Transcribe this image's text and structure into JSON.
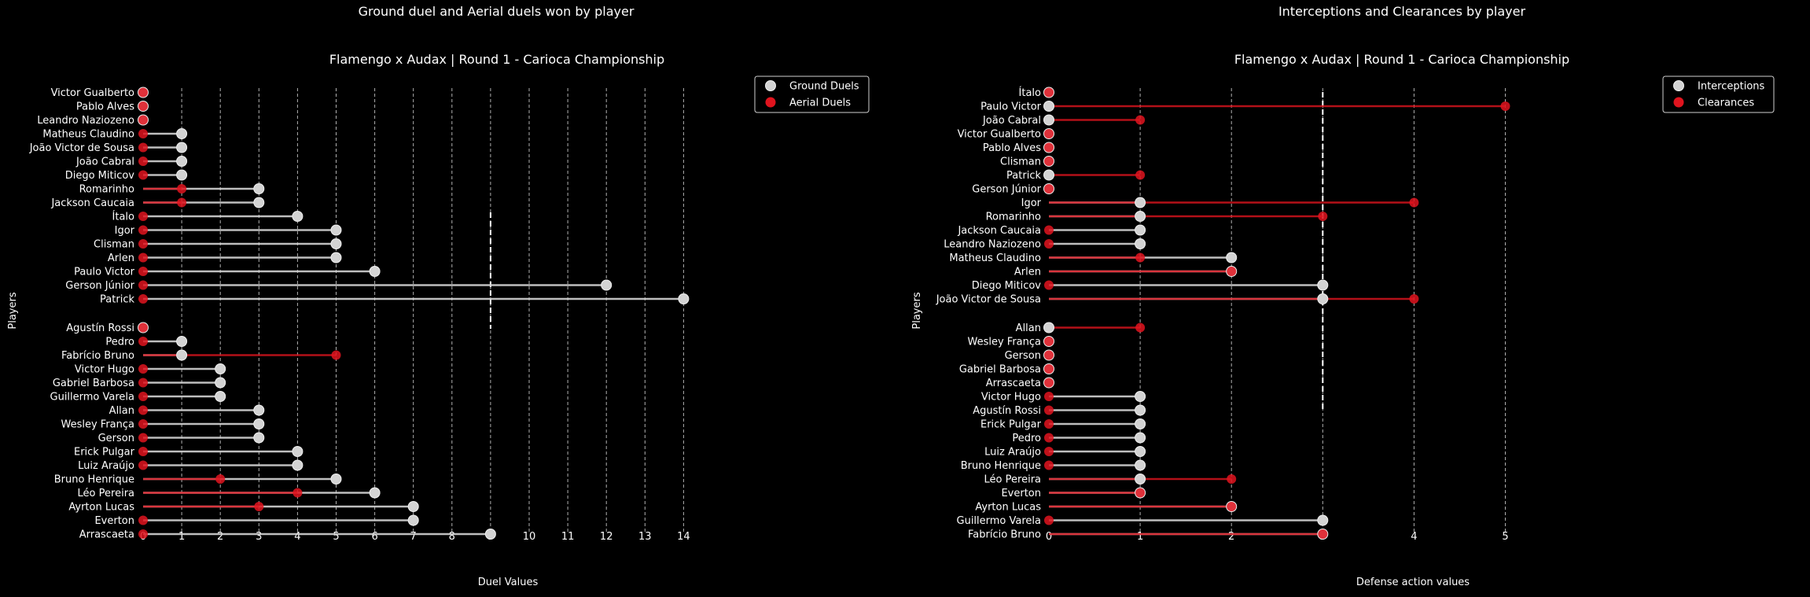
{
  "chart_data": [
    {
      "type": "lollipop",
      "suptitle": "Ground duel and Aerial duels won by player",
      "title": "Flamengo x Audax | Round 1 - Carioca Championship",
      "xlabel": "Duel Values",
      "ylabel": "Players",
      "xlim": [
        0,
        14
      ],
      "xticks": [
        0,
        1,
        2,
        3,
        4,
        5,
        6,
        7,
        8,
        9,
        10,
        11,
        12,
        13,
        14
      ],
      "grid": true,
      "legend_position": "upper-right-outside",
      "divider_value": 9,
      "colors": {
        "series_a": "#d3d3d3",
        "series_b": "#e0141e"
      },
      "series": [
        {
          "name": "Ground Duels"
        },
        {
          "name": "Aerial Duels"
        }
      ],
      "groups": [
        {
          "players": [
            "Victor Gualberto",
            "Pablo Alves",
            "Leandro Naziozeno",
            "Matheus Claudino",
            "João Victor de Sousa",
            "João Cabral",
            "Diego Miticov",
            "Romarinho",
            "Jackson Caucaia",
            "Ítalo",
            "Igor",
            "Clisman",
            "Arlen",
            "Paulo Victor",
            "Gerson Júnior",
            "Patrick"
          ],
          "a": [
            0,
            0,
            0,
            1,
            1,
            1,
            1,
            3,
            3,
            4,
            5,
            5,
            5,
            6,
            12,
            14
          ],
          "b": [
            0,
            0,
            0,
            0,
            0,
            0,
            0,
            1,
            1,
            0,
            0,
            0,
            0,
            0,
            0,
            0
          ]
        },
        {
          "players": [
            "Agustín Rossi",
            "Pedro",
            "Fabrício Bruno",
            "Victor Hugo",
            "Gabriel Barbosa",
            "Guillermo Varela",
            "Allan",
            "Wesley França",
            "Gerson",
            "Erick Pulgar",
            "Luiz Araújo",
            "Bruno Henrique",
            "Léo Pereira",
            "Ayrton Lucas",
            "Everton",
            "Arrascaeta"
          ],
          "a": [
            0,
            1,
            1,
            2,
            2,
            2,
            3,
            3,
            3,
            4,
            4,
            5,
            6,
            7,
            7,
            9
          ],
          "b": [
            0,
            0,
            5,
            0,
            0,
            0,
            0,
            0,
            0,
            0,
            0,
            2,
            4,
            3,
            0,
            0
          ]
        }
      ]
    },
    {
      "type": "lollipop",
      "suptitle": "Interceptions and Clearances by player",
      "title": "Flamengo x Audax | Round 1 - Carioca Championship",
      "xlabel": "Defense action values",
      "ylabel": "Players",
      "xlim": [
        0,
        5
      ],
      "xticks": [
        0,
        1,
        2,
        3,
        4,
        5
      ],
      "grid": true,
      "legend_position": "upper-right-outside",
      "divider_value": 3,
      "colors": {
        "series_a": "#d3d3d3",
        "series_b": "#e0141e"
      },
      "series": [
        {
          "name": "Interceptions"
        },
        {
          "name": "Clearances"
        }
      ],
      "groups": [
        {
          "players": [
            "Ítalo",
            "Paulo Victor",
            "João Cabral",
            "Victor Gualberto",
            "Pablo Alves",
            "Clisman",
            "Patrick",
            "Gerson Júnior",
            "Igor",
            "Romarinho",
            "Jackson Caucaia",
            "Leandro Naziozeno",
            "Matheus Claudino",
            "Arlen",
            "Diego Miticov",
            "João Victor de Sousa"
          ],
          "a": [
            0,
            0,
            0,
            0,
            0,
            0,
            0,
            0,
            1,
            1,
            1,
            1,
            2,
            2,
            3,
            3
          ],
          "b": [
            0,
            5,
            1,
            0,
            0,
            0,
            1,
            0,
            4,
            3,
            0,
            0,
            1,
            2,
            0,
            4
          ]
        },
        {
          "players": [
            "Allan",
            "Wesley França",
            "Gerson",
            "Gabriel Barbosa",
            "Arrascaeta",
            "Victor Hugo",
            "Agustín Rossi",
            "Erick Pulgar",
            "Pedro",
            "Luiz Araújo",
            "Bruno Henrique",
            "Léo Pereira",
            "Everton",
            "Ayrton Lucas",
            "Guillermo Varela",
            "Fabrício Bruno"
          ],
          "a": [
            0,
            0,
            0,
            0,
            0,
            1,
            1,
            1,
            1,
            1,
            1,
            1,
            1,
            2,
            3,
            3
          ],
          "b": [
            1,
            0,
            0,
            0,
            0,
            0,
            0,
            0,
            0,
            0,
            0,
            2,
            1,
            2,
            0,
            3
          ]
        }
      ]
    }
  ]
}
